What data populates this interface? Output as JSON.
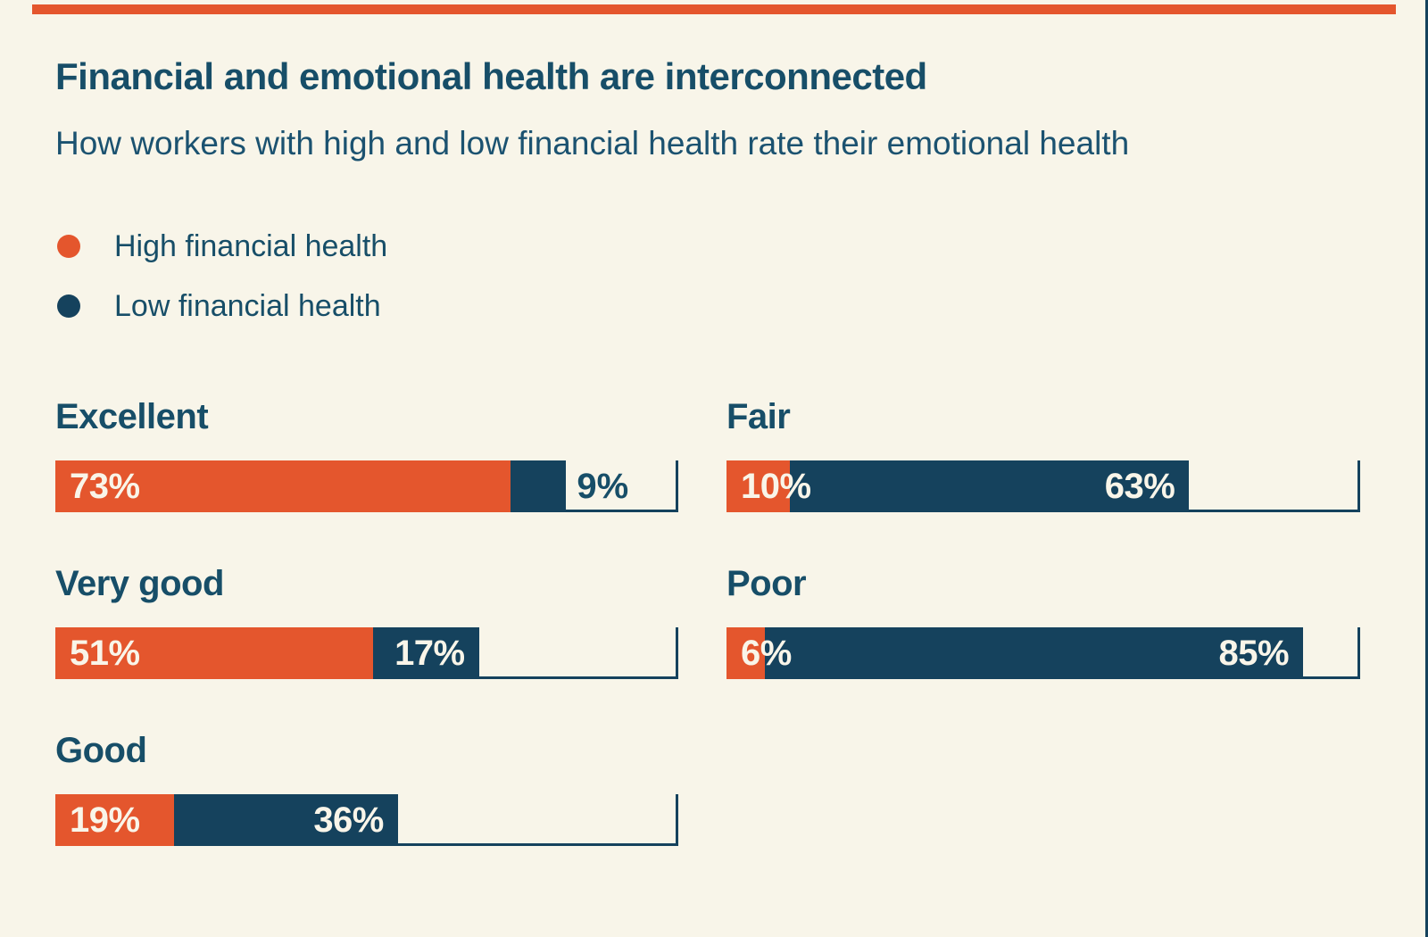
{
  "page": {
    "background_color": "#f8f5e9",
    "accent_bar_color": "#e4562d",
    "edge_line_color": "#15425d",
    "text_color": "#174e68",
    "bar_label_color": "#f9f5e9"
  },
  "header": {
    "title": "Financial and emotional health are interconnected",
    "subtitle": "How workers with high and low financial health rate their emotional health"
  },
  "legend": {
    "items": [
      {
        "label": "High financial health",
        "color": "#e4562d"
      },
      {
        "label": "Low financial health",
        "color": "#15425d"
      }
    ]
  },
  "chart_data": {
    "type": "bar",
    "orientation": "horizontal",
    "stacked": true,
    "title": "Financial and emotional health are interconnected",
    "subtitle": "How workers with high and low financial health rate their emotional health",
    "unit": "percent",
    "xlim": [
      0,
      100
    ],
    "grid": false,
    "legend_position": "top-left",
    "categories": [
      "Excellent",
      "Very good",
      "Good",
      "Fair",
      "Poor"
    ],
    "series": [
      {
        "name": "High financial health",
        "color": "#e4562d",
        "values": [
          73,
          51,
          19,
          10,
          6
        ]
      },
      {
        "name": "Low financial health",
        "color": "#15425d",
        "values": [
          9,
          17,
          36,
          63,
          85
        ]
      }
    ],
    "layout_columns": {
      "left": [
        "Excellent",
        "Very good",
        "Good"
      ],
      "right": [
        "Fair",
        "Poor"
      ]
    },
    "axis_frame": {
      "baseline": true,
      "end_tick_at_percent": 100
    },
    "rows": [
      {
        "category": "Excellent",
        "column": "left",
        "high": 73,
        "low": 9,
        "high_label": "73%",
        "low_label": "9%",
        "low_label_placement": "outside"
      },
      {
        "category": "Very good",
        "column": "left",
        "high": 51,
        "low": 17,
        "high_label": "51%",
        "low_label": "17%",
        "low_label_placement": "inside"
      },
      {
        "category": "Good",
        "column": "left",
        "high": 19,
        "low": 36,
        "high_label": "19%",
        "low_label": "36%",
        "low_label_placement": "inside"
      },
      {
        "category": "Fair",
        "column": "right",
        "high": 10,
        "low": 63,
        "high_label": "10%",
        "low_label": "63%",
        "low_label_placement": "inside"
      },
      {
        "category": "Poor",
        "column": "right",
        "high": 6,
        "low": 85,
        "high_label": "6%",
        "low_label": "85%",
        "low_label_placement": "inside"
      }
    ]
  }
}
